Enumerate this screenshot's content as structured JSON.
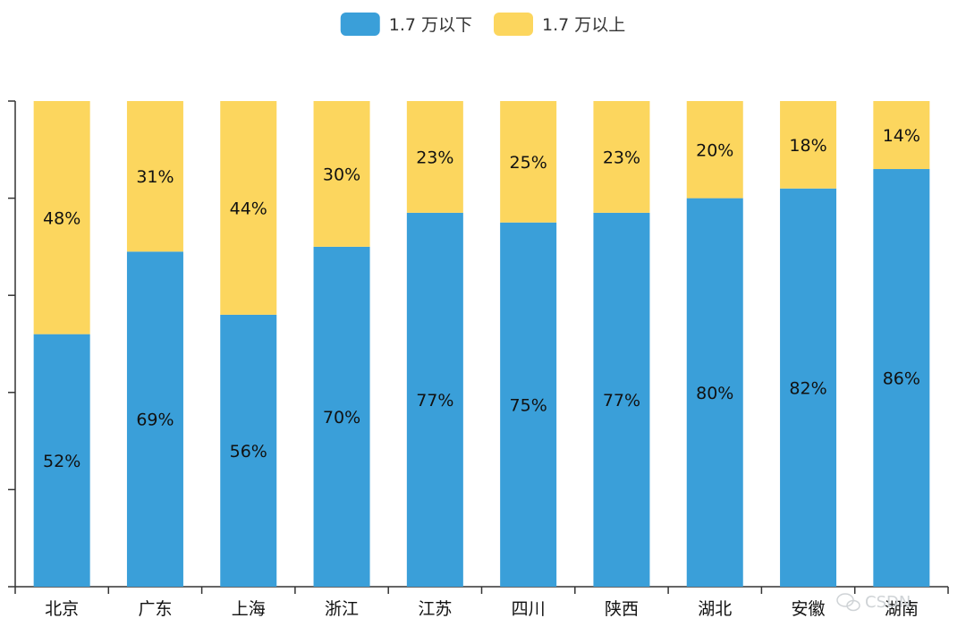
{
  "chart_data": {
    "type": "bar",
    "stacked": true,
    "percent_scale": true,
    "categories": [
      "北京",
      "广东",
      "上海",
      "浙江",
      "江苏",
      "四川",
      "陕西",
      "湖北",
      "安徽",
      "湖南"
    ],
    "series": [
      {
        "name": "1.7 万以下",
        "color": "#3a9fd9",
        "values": [
          52,
          69,
          56,
          70,
          77,
          75,
          77,
          80,
          82,
          86
        ],
        "labels": [
          "52%",
          "69%",
          "56%",
          "70%",
          "77%",
          "75%",
          "77%",
          "80%",
          "82%",
          "86%"
        ]
      },
      {
        "name": "1.7 万以上",
        "color": "#fcd65e",
        "values": [
          48,
          31,
          44,
          30,
          23,
          25,
          23,
          20,
          18,
          14
        ],
        "labels": [
          "48%",
          "31%",
          "44%",
          "30%",
          "23%",
          "25%",
          "23%",
          "20%",
          "18%",
          "14%"
        ]
      }
    ],
    "ylim": [
      0,
      100
    ],
    "y_ticks": [
      0,
      20,
      40,
      60,
      80,
      100
    ],
    "y_tick_labels_shown": false,
    "grid": false,
    "legend_position": "top-center",
    "title": "",
    "xlabel": "",
    "ylabel": ""
  },
  "watermark": {
    "text": "CSDN",
    "icon": "wechat-icon"
  }
}
